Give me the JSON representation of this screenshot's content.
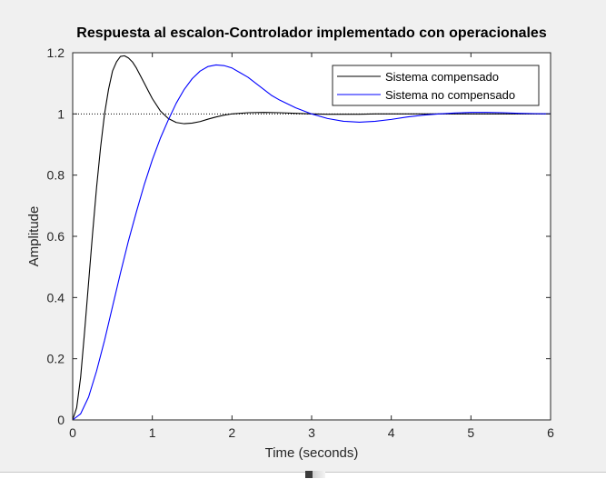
{
  "chart_data": {
    "type": "line",
    "title": "Respuesta al escalon-Controlador implementado con operacionales",
    "xlabel": "Time (seconds)",
    "ylabel": "Amplitude",
    "xlim": [
      0,
      6
    ],
    "ylim": [
      0,
      1.2
    ],
    "xticks": [
      0,
      1,
      2,
      3,
      4,
      5,
      6
    ],
    "xtick_labels": [
      "0",
      "1",
      "2",
      "3",
      "4",
      "5",
      "6"
    ],
    "yticks": [
      0,
      0.2,
      0.4,
      0.6,
      0.8,
      1.0,
      1.2
    ],
    "ytick_labels": [
      "0",
      "0.2",
      "0.4",
      "0.6",
      "0.8",
      "1",
      "1.2"
    ],
    "grid": false,
    "legend_position": "top-right",
    "reference_line": {
      "y": 1.0,
      "style": "dotted"
    },
    "series": [
      {
        "name": "Sistema compensado",
        "color": "#000000",
        "x": [
          0,
          0.05,
          0.1,
          0.15,
          0.2,
          0.25,
          0.3,
          0.35,
          0.4,
          0.45,
          0.5,
          0.55,
          0.6,
          0.65,
          0.7,
          0.75,
          0.8,
          0.85,
          0.9,
          0.95,
          1.0,
          1.1,
          1.2,
          1.3,
          1.4,
          1.5,
          1.6,
          1.7,
          1.8,
          1.9,
          2.0,
          2.2,
          2.4,
          2.6,
          2.8,
          3.0,
          3.2,
          3.4,
          3.6,
          3.8,
          4.0,
          4.5,
          5.0,
          5.5,
          6.0
        ],
        "y": [
          0,
          0.04,
          0.14,
          0.29,
          0.45,
          0.61,
          0.76,
          0.89,
          1.0,
          1.08,
          1.14,
          1.17,
          1.188,
          1.19,
          1.183,
          1.17,
          1.15,
          1.125,
          1.1,
          1.075,
          1.05,
          1.01,
          0.985,
          0.972,
          0.968,
          0.97,
          0.975,
          0.983,
          0.99,
          0.996,
          1.0,
          1.004,
          1.005,
          1.004,
          1.002,
          1.0,
          0.999,
          0.999,
          0.999,
          1.0,
          1.0,
          1.0,
          1.0,
          1.0,
          1.0
        ]
      },
      {
        "name": "Sistema no compensado",
        "color": "#0000ff",
        "x": [
          0,
          0.1,
          0.2,
          0.3,
          0.4,
          0.5,
          0.6,
          0.7,
          0.8,
          0.9,
          1.0,
          1.1,
          1.2,
          1.3,
          1.4,
          1.5,
          1.6,
          1.7,
          1.8,
          1.9,
          2.0,
          2.1,
          2.2,
          2.3,
          2.4,
          2.5,
          2.6,
          2.8,
          3.0,
          3.2,
          3.4,
          3.6,
          3.8,
          4.0,
          4.2,
          4.4,
          4.6,
          4.8,
          5.0,
          5.2,
          5.4,
          5.6,
          5.8,
          6.0
        ],
        "y": [
          0,
          0.02,
          0.075,
          0.16,
          0.26,
          0.37,
          0.48,
          0.585,
          0.68,
          0.77,
          0.85,
          0.92,
          0.98,
          1.035,
          1.08,
          1.115,
          1.14,
          1.155,
          1.16,
          1.158,
          1.15,
          1.135,
          1.12,
          1.1,
          1.08,
          1.06,
          1.045,
          1.02,
          1.0,
          0.985,
          0.976,
          0.973,
          0.976,
          0.982,
          0.99,
          0.996,
          1.0,
          1.003,
          1.005,
          1.005,
          1.004,
          1.002,
          1.001,
          1.0
        ]
      }
    ]
  }
}
